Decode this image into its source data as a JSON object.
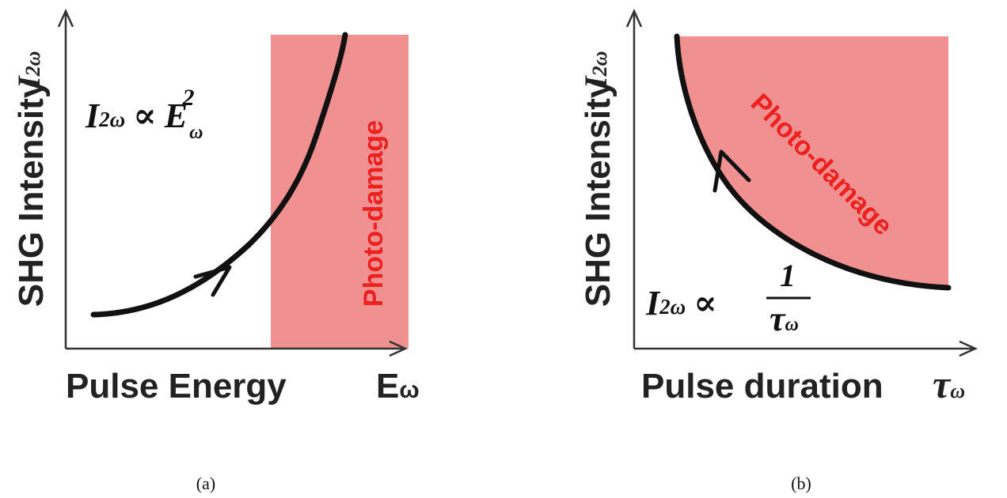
{
  "colors": {
    "region": "#f09090",
    "region_label": "#ee2020",
    "ink": "#111111",
    "axis": "#333333"
  },
  "panel_a": {
    "y_axis_label": "SHG Intensity",
    "y_axis_symbol": "I",
    "y_axis_symbol_sub": "2ω",
    "x_axis_label": "Pulse Energy",
    "x_axis_symbol": "E",
    "x_axis_symbol_sub": "ω",
    "region_label": "Photo-damage",
    "formula": {
      "lhs": "I",
      "lhs_sub": "2ω",
      "op": "∝",
      "rhs": "E",
      "rhs_sub": "ω",
      "rhs_sup": "2"
    },
    "caption": "(a)"
  },
  "panel_b": {
    "y_axis_label": "SHG Intensity",
    "y_axis_symbol": "I",
    "y_axis_symbol_sub": "2ω",
    "x_axis_label": "Pulse duration",
    "x_axis_symbol": "τ",
    "x_axis_symbol_sub": "ω",
    "region_label": "Photo-damage",
    "formula": {
      "lhs": "I",
      "lhs_sub": "2ω",
      "op": "∝",
      "numerator": "1",
      "denominator": "τ",
      "denominator_sub": "ω"
    },
    "caption": "(b)"
  }
}
